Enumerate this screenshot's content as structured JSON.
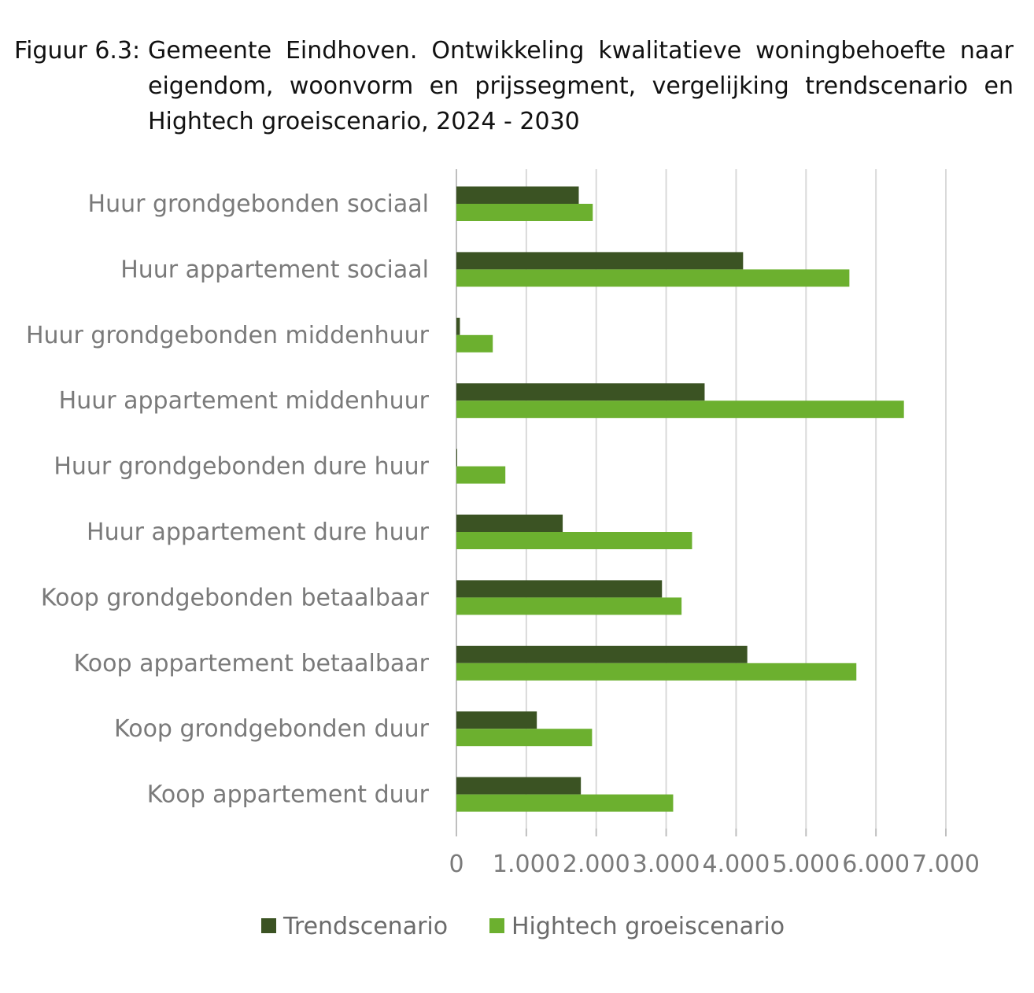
{
  "figure": {
    "label": "Figuur 6.3:",
    "caption": "Gemeente Eindhoven. Ontwikkeling kwalitatieve woningbehoefte naar eigendom, woonvorm en prijssegment, vergelijking trendscenario en Hightech groeiscenario, 2024 - 2030"
  },
  "chart_data": {
    "type": "bar",
    "orientation": "horizontal",
    "categories": [
      "Huur grondgebonden sociaal",
      "Huur appartement sociaal",
      "Huur grondgebonden middenhuur",
      "Huur appartement middenhuur",
      "Huur grondgebonden dure huur",
      "Huur appartement dure huur",
      "Koop grondgebonden betaalbaar",
      "Koop appartement betaalbaar",
      "Koop grondgebonden duur",
      "Koop appartement duur"
    ],
    "series": [
      {
        "name": "Trendscenario",
        "color": "#3b5323",
        "values": [
          1750,
          4100,
          50,
          3550,
          10,
          1520,
          2940,
          4160,
          1150,
          1780
        ]
      },
      {
        "name": "Hightech groeiscenario",
        "color": "#6cb02f",
        "values": [
          1950,
          5620,
          520,
          6400,
          700,
          3370,
          3220,
          5720,
          1940,
          3100
        ]
      }
    ],
    "xlim": [
      0,
      7000
    ],
    "xticks": [
      "0",
      "1.000",
      "2.000",
      "3.000",
      "4.000",
      "5.000",
      "6.000",
      "7.000"
    ],
    "grid": true,
    "legend": "bottom"
  }
}
